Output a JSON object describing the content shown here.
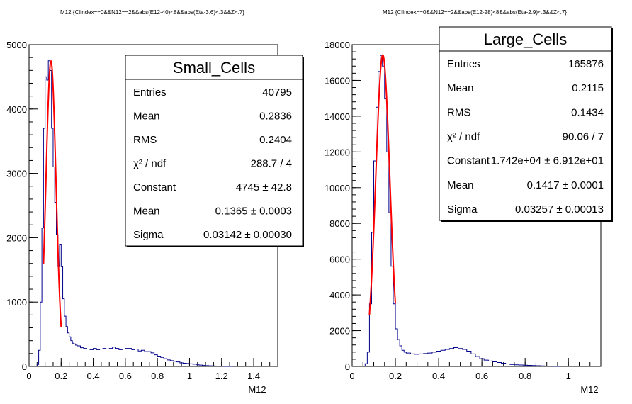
{
  "chart_data": [
    {
      "type": "histogram",
      "title": "M12 {ClIndex==0&&N12==2&&abs(E12-40)<8&&abs(Eta-3.6)<.3&&Z<.7}",
      "xlabel": "M12",
      "ylabel": "",
      "xlim": [
        0,
        1.55
      ],
      "ylim": [
        0,
        5000
      ],
      "x_ticks": [
        "0",
        "0.2",
        "0.4",
        "0.6",
        "0.8",
        "1",
        "1.2",
        "1.4"
      ],
      "x_tick_values": [
        0,
        0.2,
        0.4,
        0.6,
        0.8,
        1.0,
        1.2,
        1.4
      ],
      "y_ticks": [
        "0",
        "1000",
        "2000",
        "3000",
        "4000",
        "5000"
      ],
      "y_tick_values": [
        0,
        1000,
        2000,
        3000,
        4000,
        5000
      ],
      "bin_width": 0.01,
      "series": [
        {
          "kind": "histogram",
          "color": "#00008b",
          "x": [
            0.05,
            0.06,
            0.07,
            0.08,
            0.09,
            0.1,
            0.11,
            0.12,
            0.13,
            0.14,
            0.15,
            0.16,
            0.17,
            0.18,
            0.19,
            0.2,
            0.21,
            0.22,
            0.23,
            0.24,
            0.25,
            0.26,
            0.27,
            0.28,
            0.29,
            0.3,
            0.32,
            0.34,
            0.36,
            0.38,
            0.4,
            0.42,
            0.44,
            0.46,
            0.48,
            0.5,
            0.52,
            0.54,
            0.56,
            0.58,
            0.6,
            0.62,
            0.64,
            0.66,
            0.68,
            0.7,
            0.72,
            0.74,
            0.76,
            0.78,
            0.8,
            0.82,
            0.84,
            0.86,
            0.88,
            0.9,
            0.92,
            0.94,
            0.96,
            0.98,
            1.0,
            1.02,
            1.04,
            1.06,
            1.08,
            1.1,
            1.12,
            1.14,
            1.16,
            1.18,
            1.2,
            1.22,
            1.24,
            1.26
          ],
          "values": [
            30,
            250,
            1000,
            2150,
            3700,
            4500,
            4450,
            4750,
            4600,
            3700,
            3100,
            2550,
            2050,
            1550,
            1900,
            1550,
            1050,
            780,
            620,
            520,
            460,
            400,
            360,
            350,
            330,
            320,
            290,
            280,
            270,
            260,
            280,
            260,
            270,
            280,
            270,
            280,
            300,
            280,
            260,
            270,
            280,
            280,
            260,
            270,
            240,
            250,
            230,
            230,
            210,
            180,
            160,
            140,
            120,
            100,
            90,
            80,
            70,
            55,
            50,
            45,
            40,
            35,
            25,
            20,
            15,
            12,
            10,
            8,
            6,
            4,
            3,
            2,
            1,
            0
          ]
        },
        {
          "kind": "gaussian_fit",
          "color": "#ff0000",
          "constant": 4745,
          "mean": 0.1365,
          "sigma": 0.03142,
          "range": [
            0.09,
            0.2
          ]
        }
      ],
      "stats_box": {
        "name": "Small_Cells",
        "rows": [
          {
            "label": "Entries",
            "value": "40795"
          },
          {
            "label": "Mean",
            "value": "0.2836"
          },
          {
            "label": "RMS",
            "value": "0.2404"
          },
          {
            "label": "χ² / ndf",
            "value": "288.7 / 4"
          },
          {
            "label": "Constant",
            "value": "4745 ± 42.8"
          },
          {
            "label": "Mean",
            "value": "0.1365 ± 0.0003"
          },
          {
            "label": "Sigma",
            "value": "0.03142 ± 0.00030"
          }
        ]
      }
    },
    {
      "type": "histogram",
      "title": "M12 {ClIndex==0&&N12==2&&abs(E12-28)<8&&abs(Eta-2.9)<.3&&Z<.7}",
      "xlabel": "M12",
      "ylabel": "",
      "xlim": [
        0,
        1.15
      ],
      "ylim": [
        0,
        18000
      ],
      "x_ticks": [
        "0",
        "0.2",
        "0.4",
        "0.6",
        "0.8",
        "1"
      ],
      "x_tick_values": [
        0,
        0.2,
        0.4,
        0.6,
        0.8,
        1.0
      ],
      "y_ticks": [
        "0",
        "2000",
        "4000",
        "6000",
        "8000",
        "10000",
        "12000",
        "14000",
        "16000",
        "18000"
      ],
      "y_tick_values": [
        0,
        2000,
        4000,
        6000,
        8000,
        10000,
        12000,
        14000,
        16000,
        18000
      ],
      "bin_width": 0.0075,
      "series": [
        {
          "kind": "histogram",
          "color": "#00008b",
          "x": [
            0.05,
            0.06,
            0.07,
            0.08,
            0.09,
            0.1,
            0.11,
            0.12,
            0.13,
            0.14,
            0.15,
            0.16,
            0.17,
            0.18,
            0.19,
            0.2,
            0.21,
            0.22,
            0.23,
            0.24,
            0.25,
            0.27,
            0.29,
            0.31,
            0.33,
            0.35,
            0.37,
            0.39,
            0.41,
            0.43,
            0.45,
            0.47,
            0.49,
            0.51,
            0.53,
            0.55,
            0.57,
            0.59,
            0.61,
            0.63,
            0.65,
            0.67,
            0.69,
            0.71,
            0.73,
            0.75,
            0.77,
            0.79,
            0.81,
            0.83,
            0.85,
            0.87,
            0.89,
            0.91,
            0.93,
            0.95
          ],
          "values": [
            20,
            150,
            800,
            3500,
            7500,
            11500,
            14500,
            16500,
            17400,
            16800,
            15000,
            12000,
            8600,
            5600,
            3500,
            2100,
            1500,
            1150,
            900,
            800,
            750,
            700,
            680,
            700,
            720,
            750,
            800,
            850,
            900,
            950,
            1000,
            1050,
            1000,
            950,
            850,
            700,
            550,
            430,
            350,
            300,
            260,
            220,
            180,
            140,
            110,
            90,
            80,
            70,
            60,
            50,
            40,
            30,
            20,
            15,
            10,
            0
          ]
        },
        {
          "kind": "gaussian_fit",
          "color": "#ff0000",
          "constant": 17420,
          "mean": 0.1417,
          "sigma": 0.03257,
          "range": [
            0.08,
            0.2
          ]
        }
      ],
      "stats_box": {
        "name": "Large_Cells",
        "rows": [
          {
            "label": "Entries",
            "value": "165876"
          },
          {
            "label": "Mean",
            "value": "0.2115"
          },
          {
            "label": "RMS",
            "value": "0.1434"
          },
          {
            "label": "χ² / ndf",
            "value": "90.06 / 7"
          },
          {
            "label": "Constant",
            "value": "1.742e+04 ± 6.912e+01"
          },
          {
            "label": "Mean",
            "value": "0.1417 ± 0.0001"
          },
          {
            "label": "Sigma",
            "value": "0.03257 ± 0.00013"
          }
        ]
      }
    }
  ]
}
